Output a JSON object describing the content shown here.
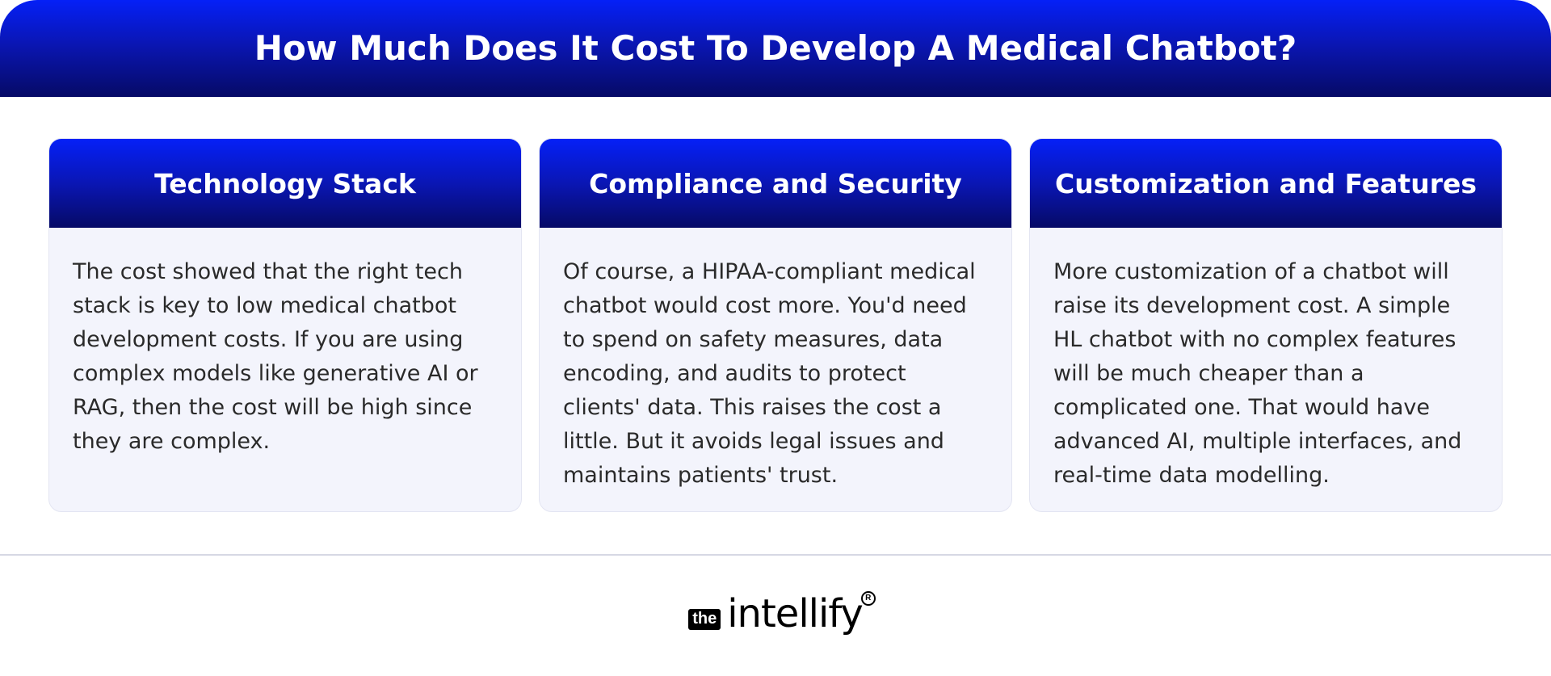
{
  "header": {
    "title": "How Much Does It Cost To Develop A Medical Chatbot?"
  },
  "cards": [
    {
      "title": "Technology Stack",
      "body": "The cost showed that the right tech stack is key to low medical chatbot development costs. If you are using complex models like generative AI or RAG, then the cost will be high since they are complex."
    },
    {
      "title": "Compliance and Security",
      "body": "Of course, a HIPAA-compliant medical chatbot would cost more. You'd need to spend on safety measures, data encoding, and audits to protect clients' data. This raises the cost a little. But it avoids legal issues and maintains patients' trust."
    },
    {
      "title": "Customization and Features",
      "body": "More customization of a chatbot will raise its development cost. A simple HL chatbot with no complex features will be much cheaper than a complicated one. That would have advanced AI, multiple interfaces, and real-time data modelling."
    }
  ],
  "logo": {
    "badge": "the",
    "word": "intellify",
    "reg": "R"
  },
  "colors": {
    "accent_top": "#0520f7",
    "accent_bottom": "#060a66",
    "card_bg": "#f3f4fc",
    "text": "#2a2a2a"
  }
}
